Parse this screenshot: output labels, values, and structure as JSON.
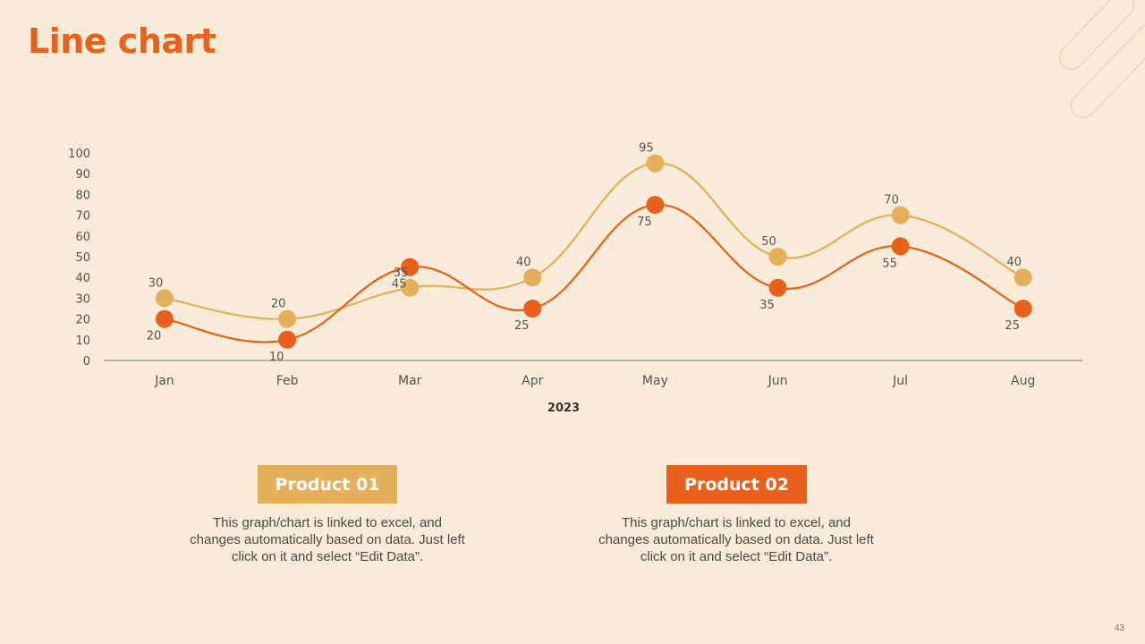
{
  "slide": {
    "title": "Line chart",
    "page_number": "43"
  },
  "colors": {
    "background": "#F8EBD8",
    "accent": "#E8621D",
    "product_01": "#E5B05C",
    "product_02": "#E8601C",
    "axis": "#555555",
    "text": "#4A4A4A"
  },
  "legend": [
    {
      "label": "Product 01",
      "description": "This graph/chart is linked to excel, and changes automatically based on data. Just left click on it and select “Edit Data”."
    },
    {
      "label": "Product 02",
      "description": "This graph/chart is linked to excel, and changes automatically based on data. Just left click on it and select “Edit Data”."
    }
  ],
  "chart_data": {
    "type": "line",
    "title": "",
    "xlabel": "2023",
    "ylabel": "",
    "categories": [
      "Jan",
      "Feb",
      "Mar",
      "Apr",
      "May",
      "Jun",
      "Jul",
      "Aug"
    ],
    "yticks": [
      0,
      10,
      20,
      30,
      40,
      50,
      60,
      70,
      80,
      90,
      100
    ],
    "ylim": [
      0,
      100
    ],
    "grid": false,
    "smooth": true,
    "series": [
      {
        "name": "Product 01",
        "values": [
          30,
          20,
          35,
          40,
          95,
          50,
          70,
          40
        ],
        "color": "#E5B05C"
      },
      {
        "name": "Product 02",
        "values": [
          20,
          10,
          45,
          25,
          75,
          35,
          55,
          25
        ],
        "color": "#E8601C"
      }
    ]
  }
}
